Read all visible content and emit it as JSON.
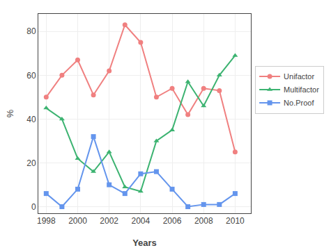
{
  "chart_data": {
    "type": "line",
    "x": [
      1998,
      1999,
      2000,
      2001,
      2002,
      2003,
      2004,
      2005,
      2006,
      2007,
      2008,
      2009,
      2010
    ],
    "series": [
      {
        "name": "Unifactor",
        "color": "#F08080",
        "marker": "circle",
        "values": [
          50,
          60,
          67,
          51,
          62,
          83,
          75,
          50,
          54,
          42,
          54,
          53,
          25
        ]
      },
      {
        "name": "Multifactor",
        "color": "#3CB371",
        "marker": "triangle-up",
        "values": [
          45,
          40,
          22,
          16,
          25,
          9,
          7,
          30,
          35,
          57,
          46,
          60,
          69
        ]
      },
      {
        "name": "No.Proof",
        "color": "#6495ED",
        "marker": "square",
        "values": [
          6,
          0,
          8,
          32,
          10,
          6,
          15,
          16,
          8,
          0,
          1,
          1,
          6
        ]
      }
    ],
    "xlabel": "Years",
    "ylabel": "%",
    "xlim": [
      1997.5,
      2011.0
    ],
    "xticks": [
      1998,
      2000,
      2002,
      2004,
      2006,
      2008,
      2010
    ],
    "ylim": [
      -3,
      88
    ],
    "yticks": [
      0,
      20,
      40,
      60,
      80
    ],
    "grid": true,
    "legend": "right"
  }
}
